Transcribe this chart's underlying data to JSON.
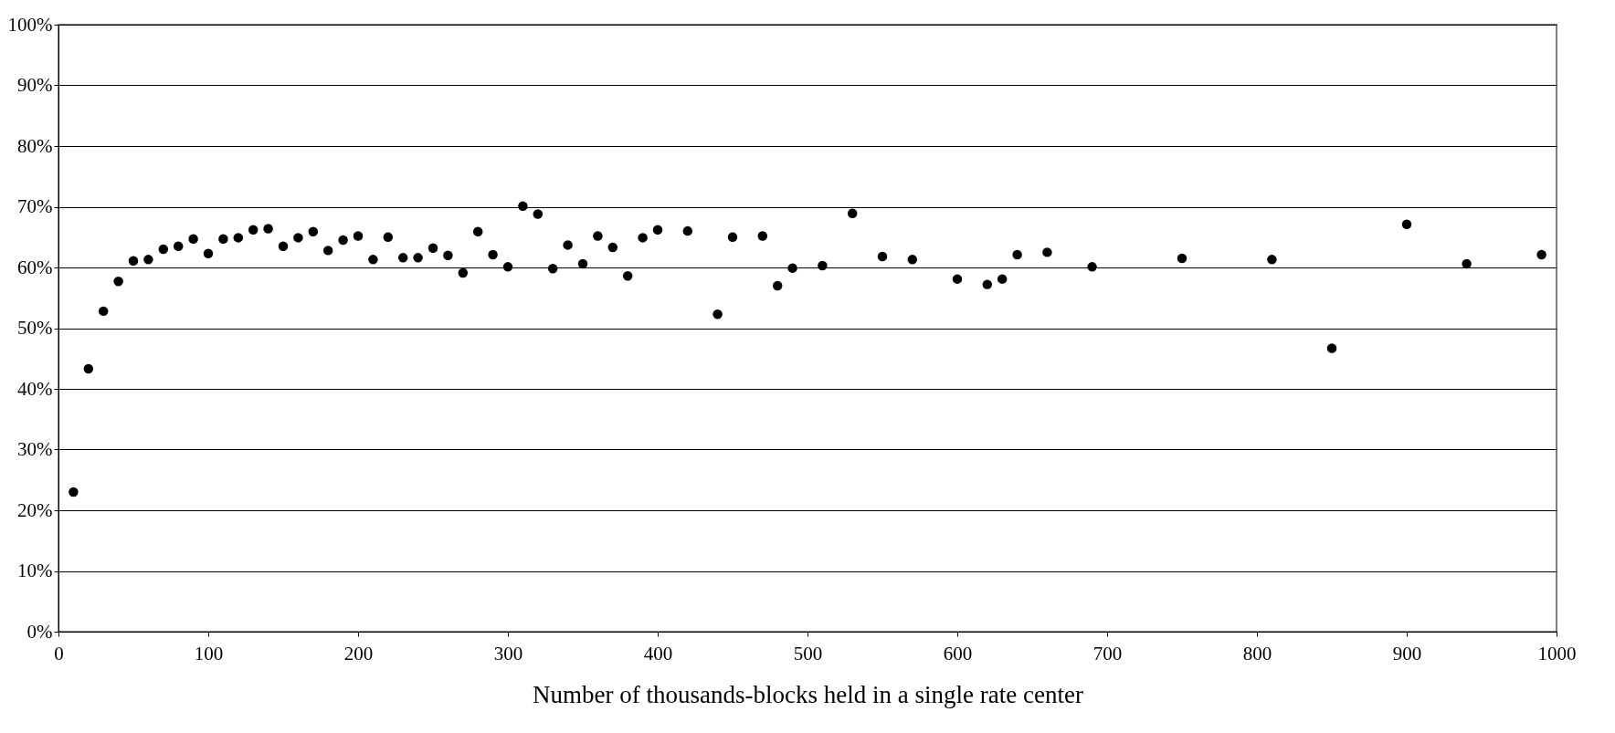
{
  "chart_data": {
    "type": "scatter",
    "xlabel": "Number of thousands-blocks held in a single rate center",
    "x": [
      10,
      20,
      30,
      40,
      50,
      60,
      70,
      80,
      90,
      100,
      110,
      120,
      130,
      140,
      150,
      160,
      170,
      180,
      190,
      200,
      210,
      220,
      230,
      240,
      250,
      260,
      270,
      280,
      290,
      300,
      310,
      320,
      330,
      340,
      350,
      360,
      370,
      380,
      390,
      400,
      420,
      440,
      450,
      470,
      480,
      490,
      510,
      530,
      550,
      570,
      600,
      620,
      630,
      640,
      660,
      690,
      750,
      810,
      850,
      900,
      940,
      990
    ],
    "series": [
      {
        "color": "#000000",
        "values": [
          23,
          43.3,
          52.8,
          57.7,
          61.1,
          61.3,
          63,
          63.5,
          64.7,
          62.3,
          64.7,
          64.9,
          66.2,
          66.4,
          63.5,
          64.9,
          65.9,
          62.8,
          64.5,
          65.2,
          61.3,
          65,
          61.6,
          61.6,
          63.2,
          62,
          59.1,
          65.9,
          62.1,
          60.1,
          70.1,
          68.8,
          59.8,
          63.7,
          60.6,
          65.2,
          63.3,
          58.6,
          64.9,
          66.2,
          66,
          52.3,
          65,
          65.2,
          57,
          59.9,
          60.3,
          68.9,
          61.8,
          61.3,
          58.1,
          57.2,
          58.1,
          62.1,
          62.5,
          60.1,
          61.5,
          61.3,
          46.7,
          67.1,
          60.6,
          62.1
        ]
      }
    ],
    "xlim": [
      0,
      1000
    ],
    "xticks": [
      0,
      100,
      200,
      300,
      400,
      500,
      600,
      700,
      800,
      900,
      1000
    ],
    "ylim": [
      0,
      100
    ],
    "yticks": [
      {
        "value": 0,
        "label": "0%"
      },
      {
        "value": 10,
        "label": "10%"
      },
      {
        "value": 20,
        "label": "20%"
      },
      {
        "value": 30,
        "label": "30%"
      },
      {
        "value": 40,
        "label": "40%"
      },
      {
        "value": 50,
        "label": "50%"
      },
      {
        "value": 60,
        "label": "60%"
      },
      {
        "value": 70,
        "label": "70%"
      },
      {
        "value": 80,
        "label": "80%"
      },
      {
        "value": 90,
        "label": "90%"
      },
      {
        "value": 100,
        "label": "100%"
      }
    ],
    "grid": "y",
    "marker": "circle"
  }
}
